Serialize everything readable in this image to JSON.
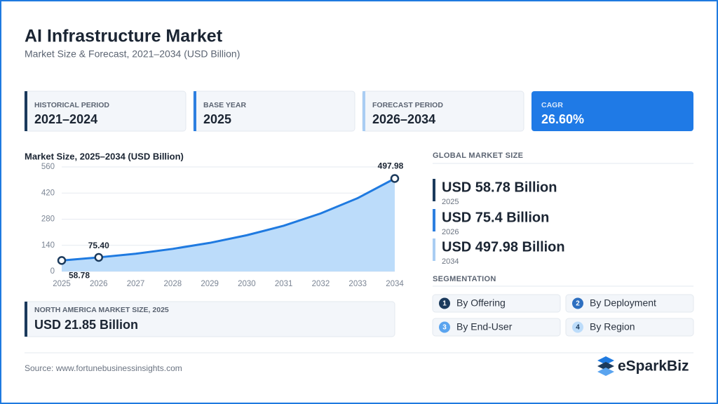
{
  "header": {
    "title": "AI Infrastructure Market",
    "subtitle": "Market Size & Forecast, 2021–2034 (USD Billion)"
  },
  "cards": [
    {
      "label": "HISTORICAL PERIOD",
      "value": "2021–2024"
    },
    {
      "label": "BASE YEAR",
      "value": "2025"
    },
    {
      "label": "FORECAST PERIOD",
      "value": "2026–2034"
    },
    {
      "label": "CAGR",
      "value": "26.60%"
    }
  ],
  "chart_data": {
    "type": "area",
    "title": "Market Size, 2025–2034 (USD Billion)",
    "x": [
      2025,
      2026,
      2027,
      2028,
      2029,
      2030,
      2031,
      2032,
      2033,
      2034
    ],
    "xlim": [
      2025,
      2034
    ],
    "values": [
      58.78,
      75.4,
      95,
      121,
      153,
      194,
      245,
      311,
      393,
      497.98
    ],
    "value_labels": [
      "58.78",
      "75.40",
      null,
      null,
      null,
      null,
      null,
      null,
      null,
      "497.98"
    ],
    "color": "#1f7ae0",
    "fill": "#bcdcfa",
    "ylim": [
      0,
      560
    ],
    "yticks": [
      0,
      140,
      280,
      420,
      560
    ],
    "grid": true
  },
  "north_america": {
    "label": "NORTH AMERICA MARKET SIZE, 2025",
    "value": "USD 21.85 Billion"
  },
  "global_market": {
    "heading": "GLOBAL MARKET SIZE",
    "items": [
      {
        "value": "USD 58.78 Billion",
        "year": "2025"
      },
      {
        "value": "USD 75.4 Billion",
        "year": "2026"
      },
      {
        "value": "USD 497.98 Billion",
        "year": "2034"
      }
    ]
  },
  "segmentation": {
    "heading": "SEGMENTATION",
    "items": [
      {
        "number": 1,
        "label": "By Offering"
      },
      {
        "number": 2,
        "label": "By Deployment"
      },
      {
        "number": 3,
        "label": "By End-User"
      },
      {
        "number": 4,
        "label": "By Region"
      }
    ]
  },
  "footer": {
    "source": "Source: www.fortunebusinessinsights.com",
    "brand": "eSparkBiz"
  }
}
